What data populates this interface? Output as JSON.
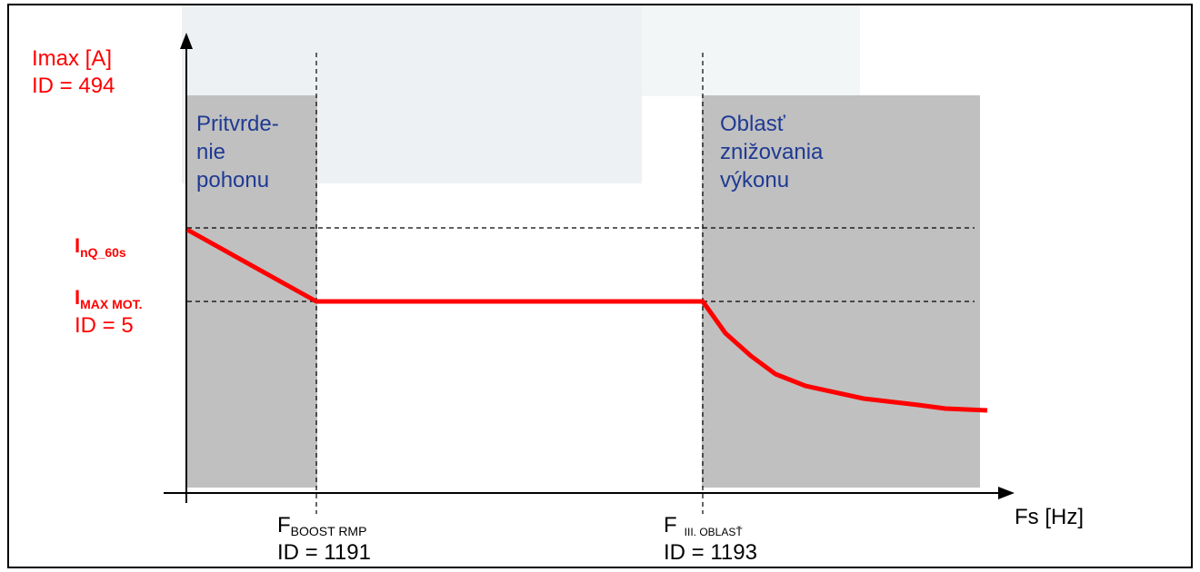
{
  "y_axis": {
    "label": "Imax [A]",
    "id": "ID = 494"
  },
  "x_axis": {
    "label": "Fs [Hz]"
  },
  "regions": {
    "left": [
      "Pritvrde-",
      "nie",
      "pohonu"
    ],
    "right": [
      "Oblasť",
      "znižovania",
      "výkonu"
    ]
  },
  "levels": {
    "inq": {
      "main": "I",
      "sub": "nQ_60s"
    },
    "imax": {
      "main": "I",
      "sub": "MAX MOT.",
      "id": "ID = 5"
    }
  },
  "markers": {
    "boost": {
      "main": "F",
      "sub": "BOOST RMP",
      "id": "ID = 1191"
    },
    "oblast": {
      "main": "F",
      "sub": "III. OBLASŤ",
      "id": "ID = 1193"
    }
  },
  "colors": {
    "accent": "#ff0000",
    "region": "#c0c0c0",
    "watermark": "#eef1f3"
  }
}
